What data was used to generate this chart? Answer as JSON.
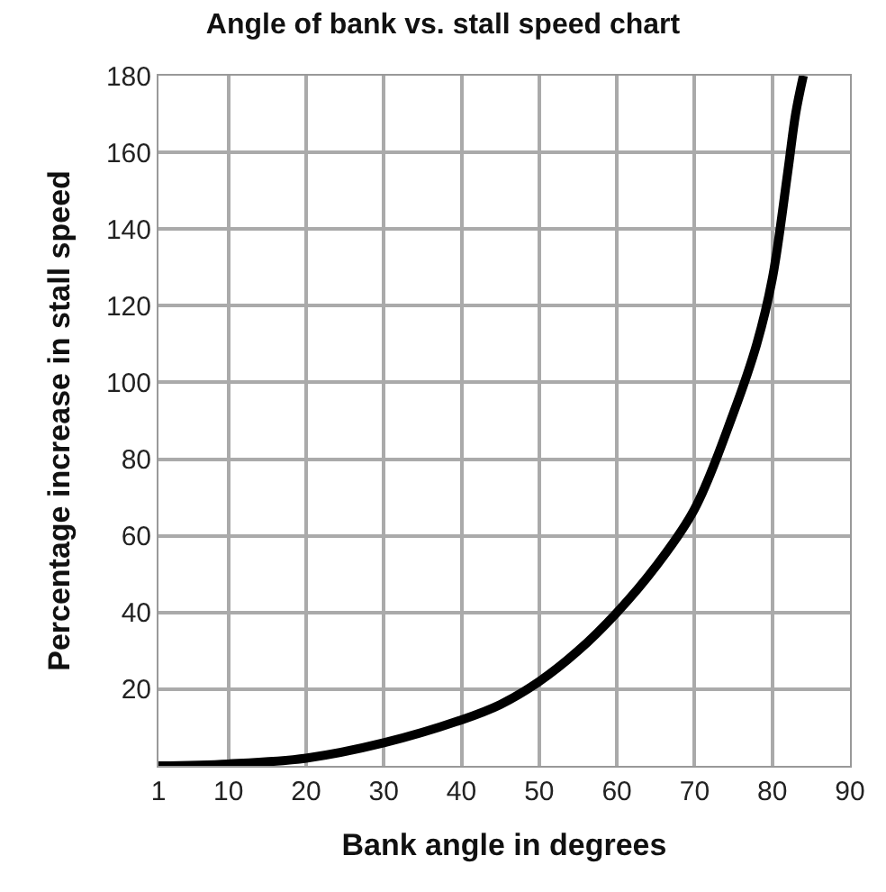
{
  "chart_data": {
    "type": "line",
    "title": "Angle of bank vs. stall speed chart",
    "xlabel": "Bank angle in degrees",
    "ylabel": "Percentage increase in stall speed",
    "x": [
      1,
      10,
      20,
      30,
      40,
      45,
      50,
      55,
      60,
      65,
      70,
      75,
      78,
      80,
      82,
      83,
      84
    ],
    "series": [
      {
        "color": "#000000",
        "values": [
          0,
          0.5,
          2,
          6,
          12,
          16,
          22,
          30,
          40,
          52,
          67,
          92,
          110,
          127,
          155,
          170,
          180
        ]
      }
    ],
    "xlim": [
      1,
      90
    ],
    "ylim": [
      0,
      180
    ],
    "xticks": [
      1,
      10,
      20,
      30,
      40,
      50,
      60,
      70,
      80,
      90
    ],
    "yticks": [
      20,
      40,
      60,
      80,
      100,
      120,
      140,
      160,
      180
    ],
    "grid": true,
    "marker": "none",
    "line_style": "solid"
  }
}
